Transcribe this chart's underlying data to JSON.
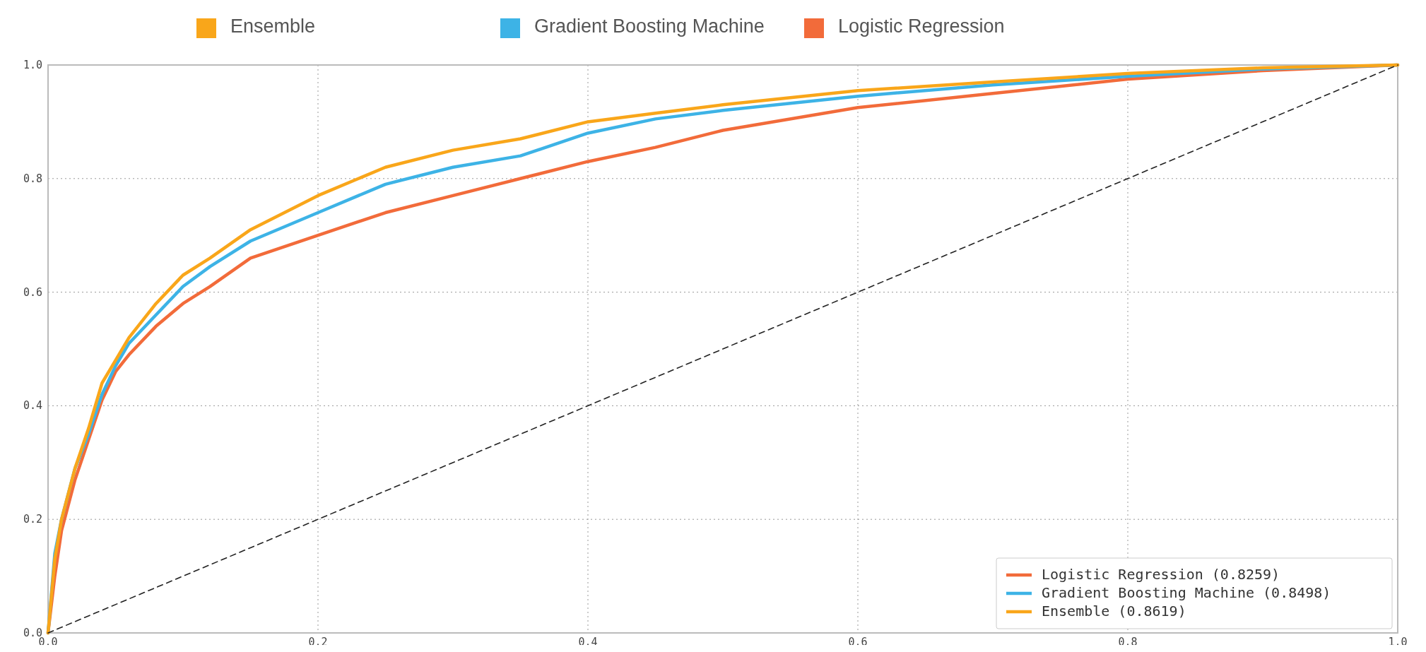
{
  "chart_data": {
    "type": "line",
    "x": [
      0,
      0.005,
      0.01,
      0.02,
      0.03,
      0.04,
      0.05,
      0.06,
      0.08,
      0.1,
      0.12,
      0.15,
      0.2,
      0.25,
      0.3,
      0.35,
      0.4,
      0.45,
      0.5,
      0.6,
      0.7,
      0.8,
      0.9,
      1
    ],
    "series": [
      {
        "name": "Logistic Regression (0.8259)",
        "color": "#f26b3a",
        "values": [
          0,
          0.1,
          0.18,
          0.27,
          0.34,
          0.41,
          0.46,
          0.49,
          0.54,
          0.58,
          0.61,
          0.66,
          0.7,
          0.74,
          0.77,
          0.8,
          0.83,
          0.855,
          0.885,
          0.925,
          0.95,
          0.975,
          0.99,
          1
        ]
      },
      {
        "name": "Gradient Boosting Machine (0.8498)",
        "color": "#3db3e6",
        "values": [
          0,
          0.14,
          0.2,
          0.29,
          0.35,
          0.42,
          0.47,
          0.51,
          0.56,
          0.61,
          0.645,
          0.69,
          0.74,
          0.79,
          0.82,
          0.84,
          0.88,
          0.905,
          0.92,
          0.945,
          0.965,
          0.98,
          0.993,
          1
        ]
      },
      {
        "name": "Ensemble (0.8619)",
        "color": "#f9a61a",
        "values": [
          0,
          0.13,
          0.2,
          0.29,
          0.36,
          0.44,
          0.48,
          0.52,
          0.58,
          0.63,
          0.66,
          0.71,
          0.77,
          0.82,
          0.85,
          0.87,
          0.9,
          0.915,
          0.93,
          0.955,
          0.97,
          0.985,
          0.995,
          1
        ]
      },
      {
        "color": "#222222",
        "x": [
          0,
          1
        ],
        "values": [
          0,
          1
        ],
        "line_style": "dashed"
      }
    ],
    "annotations": [
      "Ensemble",
      "Gradient Boosting Machine",
      "Logistic Regression"
    ],
    "xlim": [
      0,
      1
    ],
    "ylim": [
      0,
      1
    ],
    "xticks": [
      {
        "value": 0,
        "label": "0.0"
      },
      {
        "value": 0.2,
        "label": "0.2"
      },
      {
        "value": 0.4,
        "label": "0.4"
      },
      {
        "value": 0.6,
        "label": "0.6"
      },
      {
        "value": 0.8,
        "label": "0.8"
      },
      {
        "value": 1,
        "label": "1.0"
      }
    ],
    "yticks": [
      {
        "value": 0,
        "label": "0.0"
      },
      {
        "value": 0.2,
        "label": "0.2"
      },
      {
        "value": 0.4,
        "label": "0.4"
      },
      {
        "value": 0.6,
        "label": "0.6"
      },
      {
        "value": 0.8,
        "label": "0.8"
      },
      {
        "value": 1,
        "label": "1.0"
      }
    ],
    "grid": true,
    "legend": "bottom right",
    "line_style": "solid",
    "marker": "none"
  }
}
